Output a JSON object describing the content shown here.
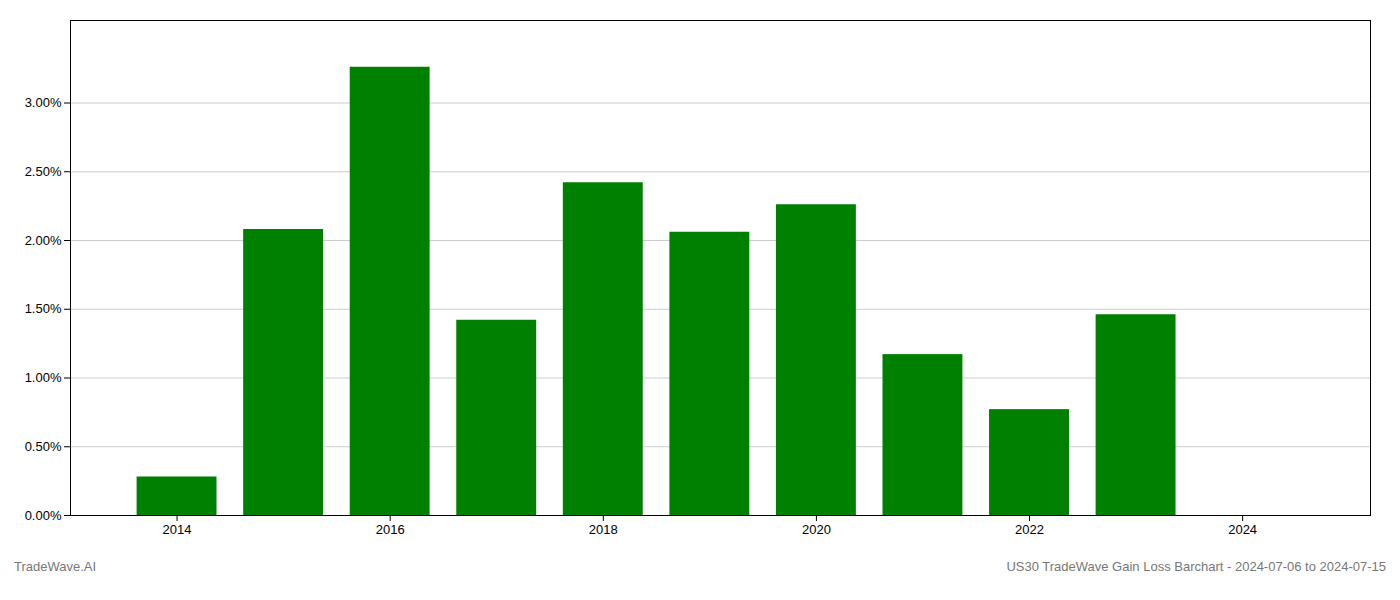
{
  "chart_data": {
    "type": "bar",
    "title": "US30 TradeWave Gain Loss Barchart - 2024-07-06 to 2024-07-15",
    "annotations": [
      "TradeWave.AI"
    ],
    "x": [
      2014,
      2015,
      2016,
      2017,
      2018,
      2019,
      2020,
      2021,
      2022,
      2023
    ],
    "values": [
      0.0028,
      0.0208,
      0.0326,
      0.0142,
      0.0242,
      0.0206,
      0.0226,
      0.0117,
      0.0077,
      0.0146
    ],
    "color": "#008000",
    "xlim": [
      2013.0,
      2025.2
    ],
    "xticks": [
      2014,
      2016,
      2018,
      2020,
      2022,
      2024
    ],
    "ylim": [
      0,
      0.036
    ],
    "yticks": [
      {
        "value": 0.0,
        "label": "0.00%"
      },
      {
        "value": 0.005,
        "label": "0.50%"
      },
      {
        "value": 0.01,
        "label": "1.00%"
      },
      {
        "value": 0.015,
        "label": "1.50%"
      },
      {
        "value": 0.02,
        "label": "2.00%"
      },
      {
        "value": 0.025,
        "label": "2.50%"
      },
      {
        "value": 0.03,
        "label": "3.00%"
      }
    ],
    "grid": true
  }
}
